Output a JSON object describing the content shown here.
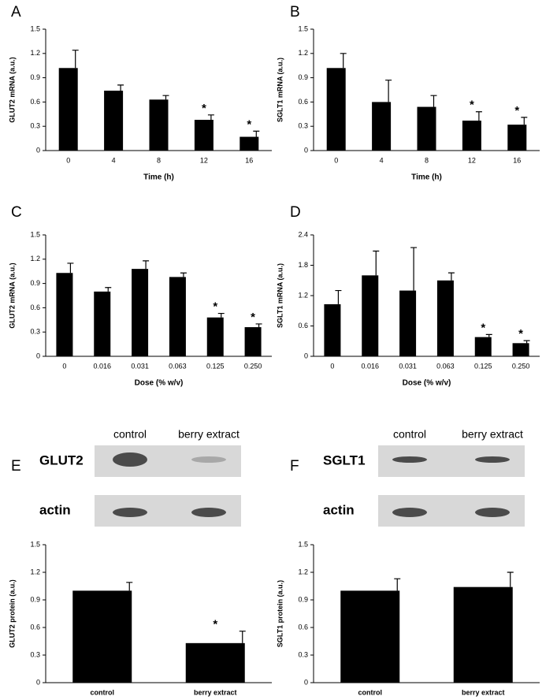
{
  "chart_data": [
    {
      "panel": "A",
      "type": "bar",
      "ylabel": "GLUT2 mRNA (a.u.)",
      "xlabel": "Time (h)",
      "color": "#000000",
      "categories": [
        "0",
        "4",
        "8",
        "12",
        "16"
      ],
      "values": [
        1.02,
        0.74,
        0.63,
        0.38,
        0.17
      ],
      "errors": [
        0.22,
        0.07,
        0.05,
        0.06,
        0.07
      ],
      "markers": [
        null,
        null,
        null,
        "*",
        "*"
      ],
      "ylim": [
        0,
        1.5
      ],
      "yticks": [
        0,
        0.3,
        0.6,
        0.9,
        1.2,
        1.5
      ]
    },
    {
      "panel": "B",
      "type": "bar",
      "ylabel": "SGLT1 mRNA (a.u.)",
      "xlabel": "Time (h)",
      "color": "#000000",
      "categories": [
        "0",
        "4",
        "8",
        "12",
        "16"
      ],
      "values": [
        1.02,
        0.6,
        0.54,
        0.37,
        0.32
      ],
      "errors": [
        0.18,
        0.27,
        0.14,
        0.11,
        0.09
      ],
      "markers": [
        null,
        null,
        null,
        "*",
        "*"
      ],
      "ylim": [
        0,
        1.5
      ],
      "yticks": [
        0,
        0.3,
        0.6,
        0.9,
        1.2,
        1.5
      ]
    },
    {
      "panel": "C",
      "type": "bar",
      "ylabel": "GLUT2 mRNA (a.u.)",
      "xlabel": "Dose (% w/v)",
      "color": "#000000",
      "categories": [
        "0",
        "0.016",
        "0.031",
        "0.063",
        "0.125",
        "0.250"
      ],
      "values": [
        1.03,
        0.8,
        1.08,
        0.98,
        0.48,
        0.36
      ],
      "errors": [
        0.12,
        0.05,
        0.1,
        0.05,
        0.05,
        0.04
      ],
      "markers": [
        null,
        null,
        null,
        null,
        "*",
        "*"
      ],
      "ylim": [
        0,
        1.5
      ],
      "yticks": [
        0,
        0.3,
        0.6,
        0.9,
        1.2,
        1.5
      ]
    },
    {
      "panel": "D",
      "type": "bar",
      "ylabel": "SGLT1 mRNA (a.u.)",
      "xlabel": "Dose (% w/v)",
      "color": "#000000",
      "categories": [
        "0",
        "0.016",
        "0.031",
        "0.063",
        "0.125",
        "0.250"
      ],
      "values": [
        1.03,
        1.6,
        1.3,
        1.5,
        0.38,
        0.26
      ],
      "errors": [
        0.27,
        0.48,
        0.85,
        0.15,
        0.05,
        0.05
      ],
      "markers": [
        null,
        null,
        null,
        null,
        "*",
        "*"
      ],
      "ylim": [
        0,
        2.4
      ],
      "yticks": [
        0,
        0.6,
        1.2,
        1.8,
        2.4
      ]
    },
    {
      "panel": "E",
      "type": "bar",
      "ylabel": "GLUT2 protein (a.u.)",
      "color": "#000000",
      "blot": {
        "lanes": [
          "control",
          "berry extract"
        ],
        "rows": [
          "GLUT2",
          "actin"
        ]
      },
      "categories": [
        "control",
        "berry extract"
      ],
      "values": [
        1.0,
        0.43
      ],
      "errors": [
        0.09,
        0.13
      ],
      "markers": [
        null,
        "*"
      ],
      "ylim": [
        0,
        1.5
      ],
      "yticks": [
        0,
        0.3,
        0.6,
        0.9,
        1.2,
        1.5
      ]
    },
    {
      "panel": "F",
      "type": "bar",
      "ylabel": "SGLT1 protein (a.u.)",
      "color": "#000000",
      "blot": {
        "lanes": [
          "control",
          "berry extract"
        ],
        "rows": [
          "SGLT1",
          "actin"
        ]
      },
      "categories": [
        "control",
        "berry extract"
      ],
      "values": [
        1.0,
        1.04
      ],
      "errors": [
        0.13,
        0.16
      ],
      "markers": [
        null,
        null
      ],
      "ylim": [
        0,
        1.5
      ],
      "yticks": [
        0,
        0.3,
        0.6,
        0.9,
        1.2,
        1.5
      ]
    }
  ]
}
